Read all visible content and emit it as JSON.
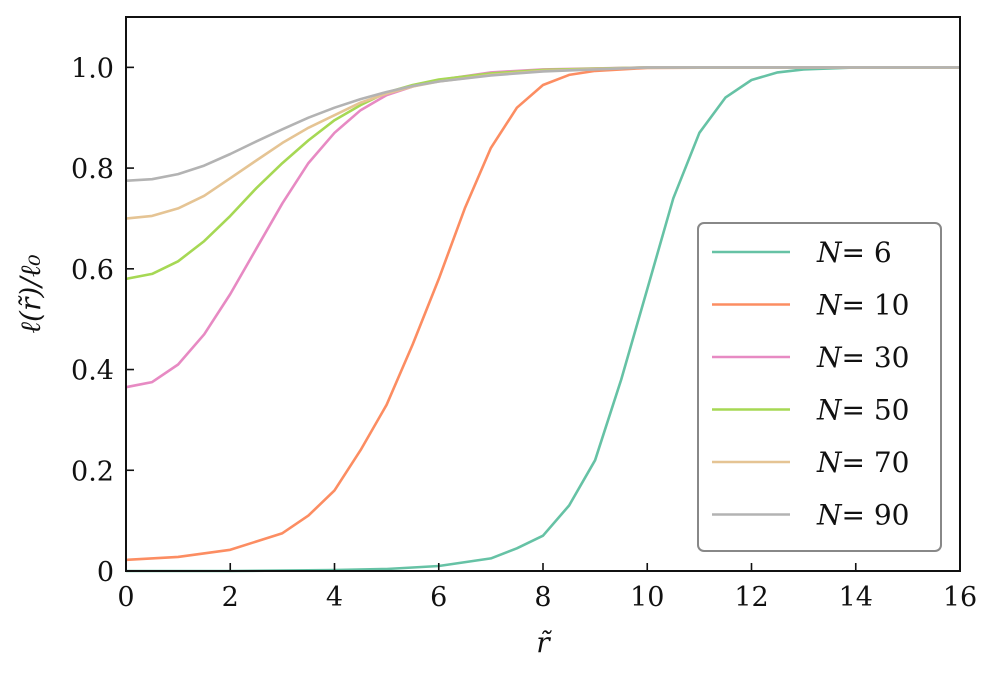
{
  "chart_data": {
    "type": "line",
    "xlabel": "r̃",
    "ylabel": "ℓ(r̃)/ℓ₀",
    "xlim": [
      0,
      16
    ],
    "ylim": [
      0,
      1.1
    ],
    "xticks": [
      0,
      2,
      4,
      6,
      8,
      10,
      12,
      14,
      16
    ],
    "xtick_labels": [
      "0",
      "2",
      "4",
      "6",
      "8",
      "10",
      "12",
      "14",
      "16"
    ],
    "yticks": [
      0,
      0.2,
      0.4,
      0.6,
      0.8,
      1.0
    ],
    "ytick_labels": [
      "0",
      "0.2",
      "0.4",
      "0.6",
      "0.8",
      "1.0"
    ],
    "grid": false,
    "legend_position": "center-right",
    "series": [
      {
        "name": "N = 6",
        "var": "N",
        "eq": "= 6",
        "color": "#66c2a5",
        "x": [
          0,
          2,
          4,
          5,
          6,
          7,
          7.5,
          8,
          8.5,
          9,
          9.5,
          10,
          10.5,
          11,
          11.5,
          12,
          12.5,
          13,
          14,
          16
        ],
        "y": [
          0.0,
          0.0,
          0.002,
          0.004,
          0.01,
          0.025,
          0.045,
          0.07,
          0.13,
          0.22,
          0.38,
          0.56,
          0.74,
          0.87,
          0.94,
          0.975,
          0.99,
          0.996,
          1.0,
          1.0
        ]
      },
      {
        "name": "N = 10",
        "var": "N",
        "eq": "= 10",
        "color": "#fc8d62",
        "x": [
          0,
          1,
          2,
          3,
          3.5,
          4,
          4.5,
          5,
          5.5,
          6,
          6.5,
          7,
          7.5,
          8,
          8.5,
          9,
          10,
          12,
          16
        ],
        "y": [
          0.022,
          0.028,
          0.042,
          0.075,
          0.11,
          0.16,
          0.24,
          0.33,
          0.45,
          0.58,
          0.72,
          0.84,
          0.92,
          0.965,
          0.985,
          0.993,
          0.999,
          1.0,
          1.0
        ]
      },
      {
        "name": "N = 30",
        "var": "N",
        "eq": "= 30",
        "color": "#e78ac3",
        "x": [
          0,
          0.5,
          1,
          1.5,
          2,
          2.5,
          3,
          3.5,
          4,
          4.5,
          5,
          5.5,
          6,
          7,
          8,
          10,
          16
        ],
        "y": [
          0.365,
          0.375,
          0.41,
          0.47,
          0.55,
          0.64,
          0.73,
          0.81,
          0.87,
          0.915,
          0.945,
          0.962,
          0.975,
          0.99,
          0.996,
          1.0,
          1.0
        ]
      },
      {
        "name": "N = 50",
        "var": "N",
        "eq": "= 50",
        "color": "#a6d854",
        "x": [
          0,
          0.5,
          1,
          1.5,
          2,
          2.5,
          3,
          3.5,
          4,
          4.5,
          5,
          5.5,
          6,
          7,
          8,
          10,
          16
        ],
        "y": [
          0.58,
          0.59,
          0.615,
          0.655,
          0.705,
          0.76,
          0.81,
          0.855,
          0.895,
          0.925,
          0.95,
          0.965,
          0.976,
          0.988,
          0.995,
          1.0,
          1.0
        ]
      },
      {
        "name": "N = 70",
        "var": "N",
        "eq": "= 70",
        "color": "#e5c494",
        "x": [
          0,
          0.5,
          1,
          1.5,
          2,
          2.5,
          3,
          3.5,
          4,
          4.5,
          5,
          5.5,
          6,
          7,
          8,
          10,
          16
        ],
        "y": [
          0.7,
          0.705,
          0.72,
          0.745,
          0.78,
          0.815,
          0.85,
          0.88,
          0.905,
          0.93,
          0.948,
          0.962,
          0.972,
          0.985,
          0.993,
          1.0,
          1.0
        ]
      },
      {
        "name": "N = 90",
        "var": "N",
        "eq": "= 90",
        "color": "#b3b3b3",
        "x": [
          0,
          0.5,
          1,
          1.5,
          2,
          2.5,
          3,
          3.5,
          4,
          4.5,
          5,
          5.5,
          6,
          7,
          8,
          10,
          16
        ],
        "y": [
          0.775,
          0.778,
          0.788,
          0.805,
          0.828,
          0.853,
          0.877,
          0.9,
          0.92,
          0.937,
          0.951,
          0.963,
          0.972,
          0.984,
          0.992,
          1.0,
          1.0
        ]
      }
    ]
  }
}
